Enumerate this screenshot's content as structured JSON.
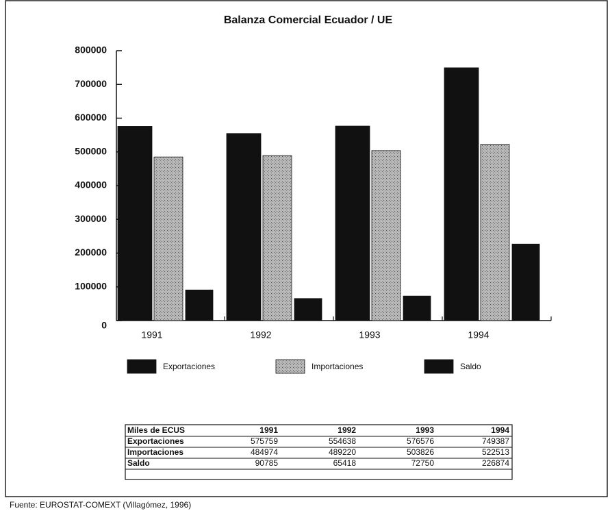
{
  "chart_data": {
    "type": "bar",
    "title": "Balanza Comercial Ecuador / UE",
    "categories": [
      "1991",
      "1992",
      "1993",
      "1994"
    ],
    "series": [
      {
        "name": "Exportaciones",
        "color": "#111111",
        "values": [
          575759,
          554638,
          576576,
          749387
        ]
      },
      {
        "name": "Importaciones",
        "color": "#a8a8a8",
        "values": [
          484974,
          489220,
          503826,
          522513
        ]
      },
      {
        "name": "Saldo",
        "color": "#111111",
        "values": [
          90785,
          65418,
          72750,
          226874
        ]
      }
    ],
    "ylim": [
      0,
      800000
    ],
    "yticks": [
      0,
      100000,
      200000,
      300000,
      400000,
      500000,
      600000,
      700000,
      800000
    ],
    "grid": false
  },
  "table": {
    "header": "Miles de ECUS"
  },
  "source": "Fuente: EUROSTAT-COMEXT (Villagómez, 1996)"
}
